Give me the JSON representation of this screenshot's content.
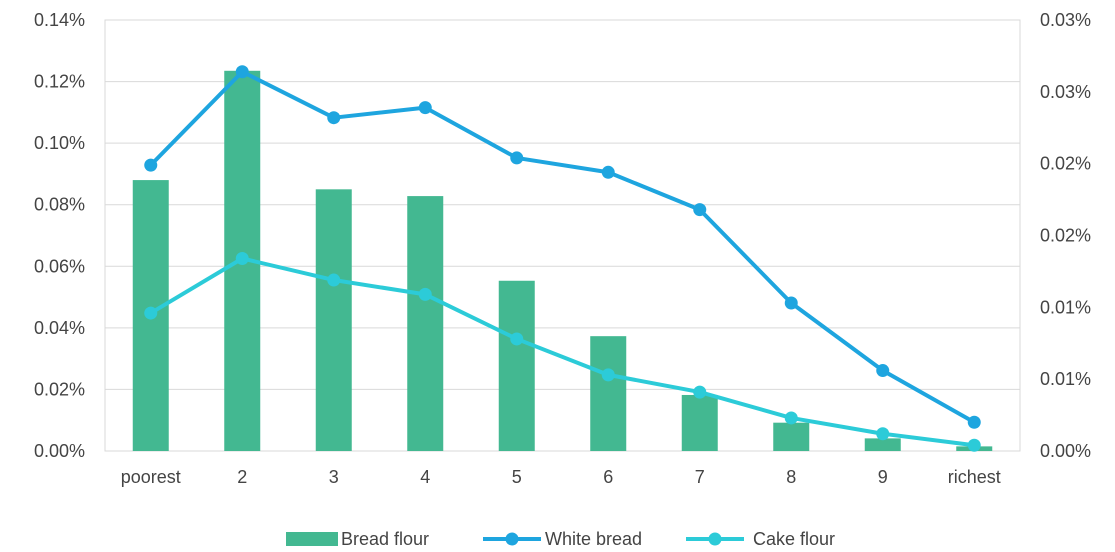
{
  "chart_data": {
    "type": "bar",
    "categories": [
      "poorest",
      "2",
      "3",
      "4",
      "5",
      "6",
      "7",
      "8",
      "9",
      "richest"
    ],
    "series": [
      {
        "name": "Bread flour",
        "type": "bar",
        "axis": "left",
        "color": "#43b891",
        "values": [
          0.088,
          0.1235,
          0.085,
          0.0828,
          0.0553,
          0.0373,
          0.0182,
          0.0092,
          0.0041,
          0.0015
        ]
      },
      {
        "name": "White bread",
        "type": "line",
        "axis": "right",
        "color": "#1ea5df",
        "values": [
          0.0199,
          0.0264,
          0.0232,
          0.0239,
          0.0204,
          0.0194,
          0.0168,
          0.0103,
          0.0056,
          0.002
        ]
      },
      {
        "name": "Cake flour",
        "type": "line",
        "axis": "right",
        "color": "#2ccbd8",
        "values": [
          0.0096,
          0.0134,
          0.0119,
          0.0109,
          0.0078,
          0.0053,
          0.0041,
          0.0023,
          0.0012,
          0.0004
        ]
      }
    ],
    "y_left": {
      "min": 0,
      "max": 0.14,
      "ticks": [
        0,
        0.02,
        0.04,
        0.06,
        0.08,
        0.1,
        0.12,
        0.14
      ],
      "tick_labels": [
        "0.00%",
        "0.02%",
        "0.04%",
        "0.06%",
        "0.08%",
        "0.10%",
        "0.12%",
        "0.14%"
      ]
    },
    "y_right": {
      "min": 0,
      "max": 0.03,
      "ticks": [
        0,
        0.005,
        0.01,
        0.015,
        0.02,
        0.025,
        0.03
      ],
      "tick_labels": [
        "0.00%",
        "0.01%",
        "0.01%",
        "0.02%",
        "0.02%",
        "0.03%",
        "0.03%"
      ]
    },
    "grid": true,
    "legend_position": "bottom-center"
  }
}
